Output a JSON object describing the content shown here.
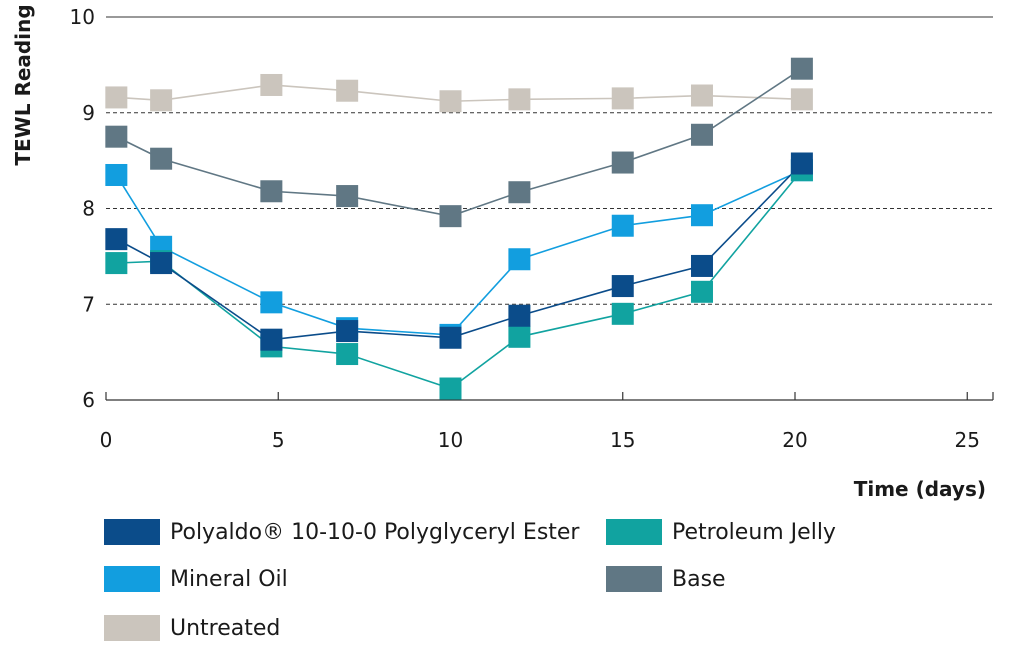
{
  "chart_data": {
    "type": "line",
    "title": "",
    "xlabel": "Time (days)",
    "ylabel": "TEWL Reading",
    "xlim": [
      0,
      26
    ],
    "ylim": [
      6,
      10
    ],
    "x_ticks": [
      "0",
      "5",
      "10",
      "15",
      "20",
      "25"
    ],
    "y_ticks": [
      "6",
      "7",
      "8",
      "9",
      "10"
    ],
    "x_tick_values": [
      0,
      5,
      10,
      15,
      20,
      25
    ],
    "y_tick_values": [
      6,
      7,
      8,
      9,
      10
    ],
    "gridlines": "horizontal dashed at 7, 8, 9; solid at 10",
    "legend_position": "bottom",
    "series": [
      {
        "name": "Untreated",
        "color": "#cbc5bd",
        "x": [
          0.3,
          1.6,
          4.8,
          7,
          10,
          12,
          15,
          17.3,
          20.2
        ],
        "y": [
          9.16,
          9.13,
          9.29,
          9.23,
          9.12,
          9.14,
          9.15,
          9.18,
          9.14
        ]
      },
      {
        "name": "Base",
        "color": "#607784",
        "x": [
          0.3,
          1.6,
          4.8,
          7,
          10,
          12,
          15,
          17.3,
          20.2
        ],
        "y": [
          8.75,
          8.52,
          8.18,
          8.13,
          7.92,
          8.17,
          8.48,
          8.77,
          9.46
        ]
      },
      {
        "name": "Mineral Oil",
        "color": "#129edf",
        "x": [
          0.3,
          1.6,
          4.8,
          7,
          10,
          12,
          15,
          17.3,
          20.2
        ],
        "y": [
          8.35,
          7.6,
          7.02,
          6.75,
          6.68,
          7.47,
          7.82,
          7.93,
          8.4
        ]
      },
      {
        "name": "Petroleum Jelly",
        "color": "#11a3a0",
        "x": [
          0.3,
          1.6,
          4.8,
          7,
          10,
          12,
          15,
          17.3,
          20.2
        ],
        "y": [
          7.43,
          7.45,
          6.56,
          6.48,
          6.12,
          6.66,
          6.9,
          7.13,
          8.4
        ]
      },
      {
        "name": "Polyaldo® 10-10-0 Polyglyceryl Ester",
        "color": "#0b4c8a",
        "x": [
          0.3,
          1.6,
          4.8,
          7,
          10,
          12,
          15,
          17.3,
          20.2
        ],
        "y": [
          7.68,
          7.43,
          6.63,
          6.72,
          6.65,
          6.88,
          7.19,
          7.4,
          8.47
        ]
      }
    ]
  },
  "legend": {
    "items": [
      {
        "label": "Polyaldo® 10-10-0 Polyglyceryl Ester",
        "color": "#0b4c8a"
      },
      {
        "label": "Petroleum Jelly",
        "color": "#11a3a0"
      },
      {
        "label": "Mineral Oil",
        "color": "#129edf"
      },
      {
        "label": "Base",
        "color": "#607784"
      },
      {
        "label": "Untreated",
        "color": "#cbc5bd"
      }
    ]
  }
}
